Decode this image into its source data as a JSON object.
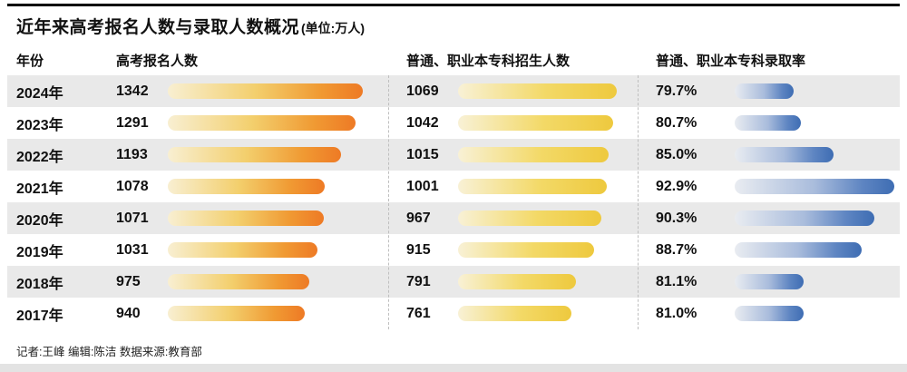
{
  "title": "近年来高考报名人数与录取人数概况",
  "title_unit": "(单位:万人)",
  "header": {
    "year": "年份",
    "registration": "高考报名人数",
    "enrollment": "普通、职业本专科招生人数",
    "rate": "普通、职业本专科录取率"
  },
  "footer": {
    "credits": "记者:王峰  编辑:陈洁  数据来源:教育部"
  },
  "colors": {
    "bar_gradient_start": "#f8efd2",
    "registration_bar_end": "#ee7a25",
    "enrollment_bar_end": "#eec93e",
    "rate_bar_end": "#3e6db3",
    "row_alt_bg": "#e9e9e9",
    "top_rule": "#000000"
  },
  "chart_data": {
    "type": "bar",
    "title": "近年来高考报名人数与录取人数概况",
    "unit": "万人",
    "categories": [
      "2024年",
      "2023年",
      "2022年",
      "2021年",
      "2020年",
      "2019年",
      "2018年",
      "2017年"
    ],
    "series": [
      {
        "name": "高考报名人数",
        "values": [
          1342,
          1291,
          1193,
          1078,
          1071,
          1031,
          975,
          940
        ]
      },
      {
        "name": "普通、职业本专科招生人数",
        "values": [
          1069,
          1042,
          1015,
          1001,
          967,
          915,
          791,
          761
        ]
      },
      {
        "name": "普通、职业本专科录取率",
        "unit": "%",
        "values": [
          79.7,
          80.7,
          85.0,
          92.9,
          90.3,
          88.7,
          81.1,
          81.0
        ]
      }
    ],
    "legend_position": "none",
    "grid": false
  }
}
